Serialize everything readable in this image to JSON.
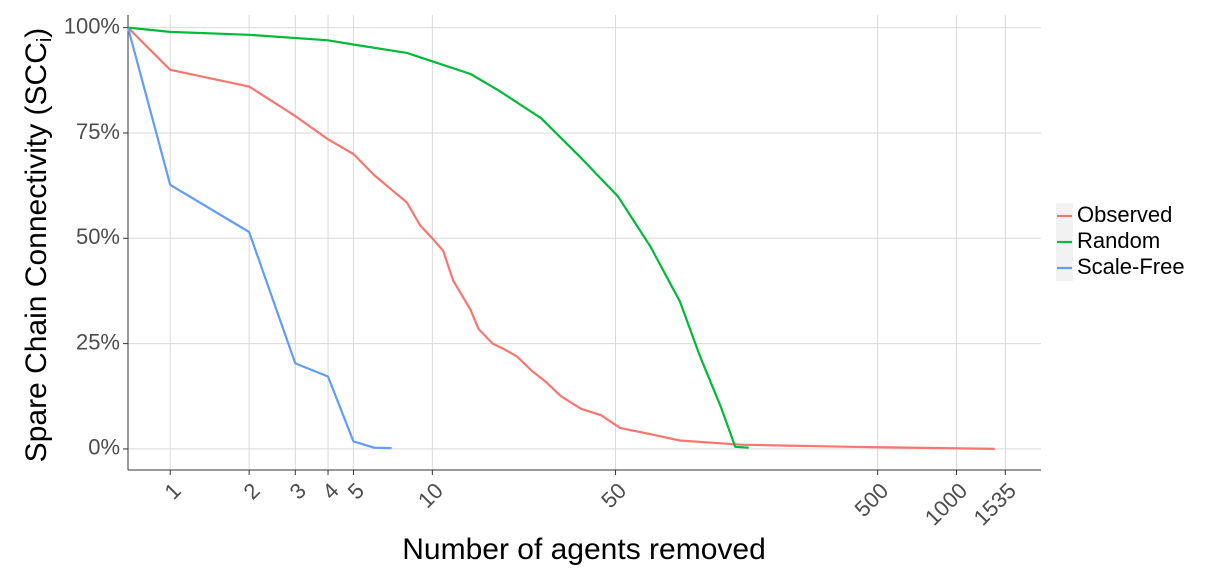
{
  "chart_data": {
    "type": "line",
    "x_label": "Number of agents removed",
    "y_label": [
      "Spare Chain Connectivity (SCC",
      "i",
      ")"
    ],
    "log_x": true,
    "grid": true,
    "legend": "right",
    "xlim": [
      0.69,
      2100
    ],
    "ylim": [
      -5,
      103
    ],
    "xticks": [
      1,
      2,
      3,
      4,
      5,
      10,
      50,
      500,
      1000,
      1535
    ],
    "yticks": [
      {
        "value": 0,
        "label": "0%"
      },
      {
        "value": 25,
        "label": "25%"
      },
      {
        "value": 50,
        "label": "50%"
      },
      {
        "value": 75,
        "label": "75%"
      },
      {
        "value": 100,
        "label": "100%"
      }
    ],
    "series": [
      {
        "name": "Observed",
        "color": "#f8766d",
        "x": [
          0.69,
          1,
          2,
          3,
          4,
          5,
          6,
          7,
          8,
          9,
          10,
          11,
          12,
          14,
          15,
          17,
          19,
          21,
          24,
          27,
          31,
          37,
          44,
          52,
          68,
          88,
          150,
          394,
          1400
        ],
        "values": [
          100,
          90,
          86,
          79,
          73.5,
          70,
          65,
          61.5,
          58.5,
          53,
          50,
          47,
          40,
          33,
          28.5,
          25,
          23.5,
          22,
          18.5,
          16,
          12.5,
          9.5,
          8,
          5,
          3.5,
          2,
          1,
          0.5,
          0
        ]
      },
      {
        "name": "Random",
        "color": "#00ba38",
        "x": [
          0.69,
          1,
          2,
          4,
          5,
          8,
          10,
          14,
          18,
          26,
          37,
          51,
          68,
          88,
          105,
          126,
          143,
          161
        ],
        "values": [
          100,
          99,
          98.3,
          97,
          96,
          94,
          92,
          89,
          85,
          78.5,
          69,
          60,
          48,
          35,
          22,
          10,
          0.5,
          0.3
        ]
      },
      {
        "name": "Scale-Free",
        "color": "#619cff",
        "x": [
          0.69,
          1,
          2,
          3,
          4,
          5,
          6,
          7
        ],
        "values": [
          100,
          62.7,
          51.5,
          20.3,
          17.2,
          1.8,
          0.3,
          0.2
        ]
      }
    ]
  }
}
